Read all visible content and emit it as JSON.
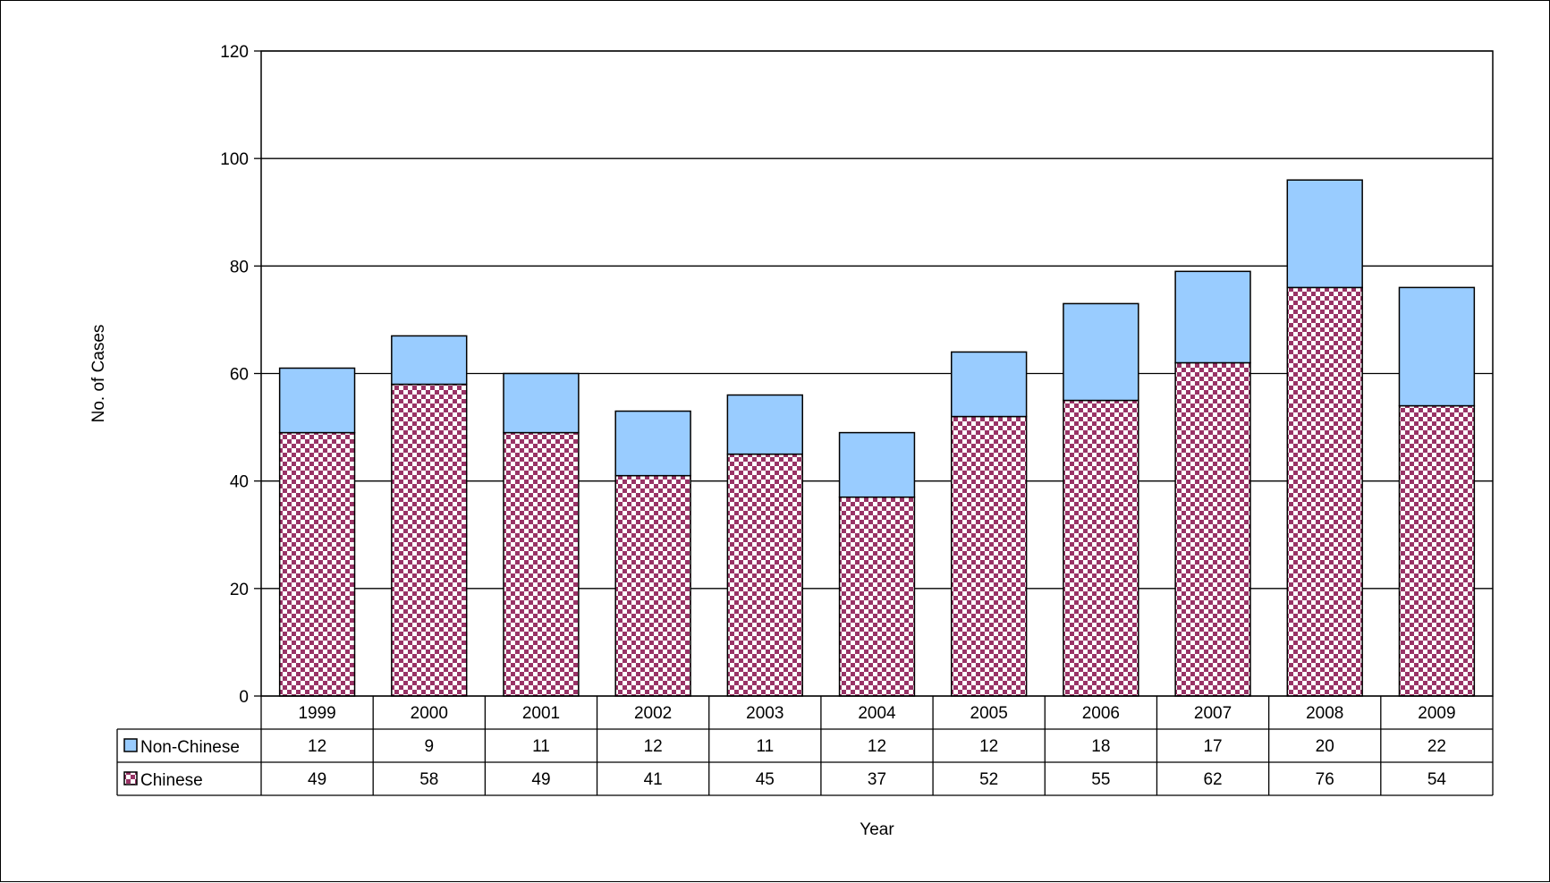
{
  "chart_data": {
    "type": "bar",
    "stacked": true,
    "categories": [
      "1999",
      "2000",
      "2001",
      "2002",
      "2003",
      "2004",
      "2005",
      "2006",
      "2007",
      "2008",
      "2009"
    ],
    "series": [
      {
        "name": "Chinese",
        "values": [
          49,
          58,
          49,
          41,
          45,
          37,
          52,
          55,
          62,
          76,
          54
        ],
        "color": "#993366",
        "pattern": "checkerboard"
      },
      {
        "name": "Non-Chinese",
        "values": [
          12,
          9,
          11,
          12,
          11,
          12,
          12,
          18,
          17,
          20,
          22
        ],
        "color": "#99ccff"
      }
    ],
    "title": "",
    "xlabel": "Year",
    "ylabel": "No. of  Cases",
    "ylim": [
      0,
      120
    ],
    "yticks": [
      0,
      20,
      40,
      60,
      80,
      100,
      120
    ],
    "grid": true,
    "data_table": true,
    "data_table_rows": [
      "Non-Chinese",
      "Chinese"
    ]
  }
}
